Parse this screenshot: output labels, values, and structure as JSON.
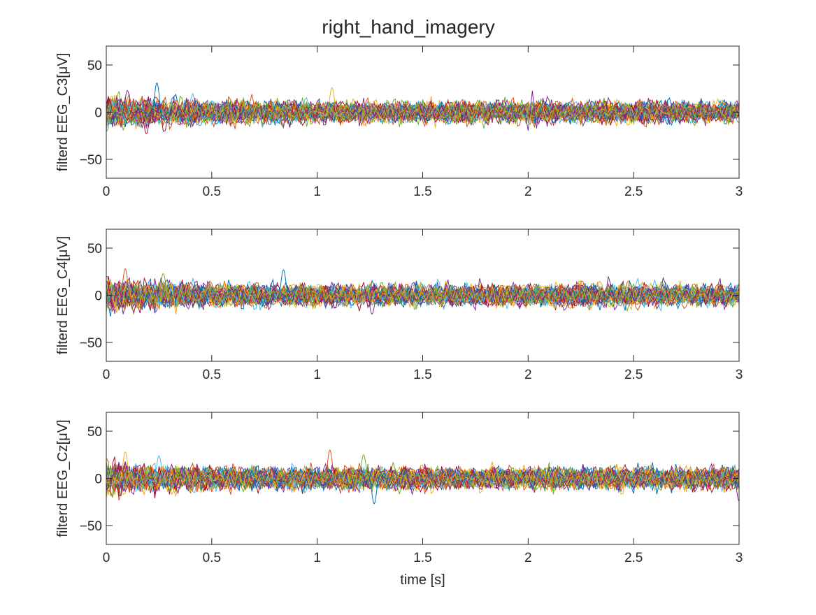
{
  "figure": {
    "title": "right_hand_imagery"
  },
  "chart_data": [
    {
      "type": "line",
      "title": "right_hand_imagery",
      "xlabel": "",
      "ylabel": "filterd EEG_C3[μV]",
      "xlim": [
        0,
        3
      ],
      "ylim": [
        -70,
        70
      ],
      "xticks": [
        0,
        0.5,
        1,
        1.5,
        2,
        2.5,
        3
      ],
      "xtick_labels": [
        "0",
        "0.5",
        "1",
        "1.5",
        "2",
        "2.5",
        "3"
      ],
      "yticks": [
        -50,
        0,
        50
      ],
      "ytick_labels": [
        "−50",
        "0",
        "50"
      ],
      "grid": false,
      "legend": "none",
      "n_traces": 40,
      "typical_amplitude_uV": 6,
      "peak_amplitude_uV": 32,
      "notable_peaks": [
        {
          "t": 0.24,
          "v": 31
        },
        {
          "t": 0.1,
          "v": 23
        },
        {
          "t": 0.19,
          "v": -23
        },
        {
          "t": 1.07,
          "v": 26
        }
      ]
    },
    {
      "type": "line",
      "xlabel": "",
      "ylabel": "filterd EEG_C4[μV]",
      "xlim": [
        0,
        3
      ],
      "ylim": [
        -70,
        70
      ],
      "xticks": [
        0,
        0.5,
        1,
        1.5,
        2,
        2.5,
        3
      ],
      "xtick_labels": [
        "0",
        "0.5",
        "1",
        "1.5",
        "2",
        "2.5",
        "3"
      ],
      "yticks": [
        -50,
        0,
        50
      ],
      "ytick_labels": [
        "−50",
        "0",
        "50"
      ],
      "grid": false,
      "legend": "none",
      "n_traces": 40,
      "typical_amplitude_uV": 6,
      "peak_amplitude_uV": 28,
      "notable_peaks": [
        {
          "t": 0.09,
          "v": 28
        },
        {
          "t": 0.27,
          "v": 23
        },
        {
          "t": 0.84,
          "v": 27
        },
        {
          "t": 1.26,
          "v": -20
        }
      ]
    },
    {
      "type": "line",
      "xlabel": "time [s]",
      "ylabel": "filterd EEG_Cz[μV]",
      "xlim": [
        0,
        3
      ],
      "ylim": [
        -70,
        70
      ],
      "xticks": [
        0,
        0.5,
        1,
        1.5,
        2,
        2.5,
        3
      ],
      "xtick_labels": [
        "0",
        "0.5",
        "1",
        "1.5",
        "2",
        "2.5",
        "3"
      ],
      "yticks": [
        -50,
        0,
        50
      ],
      "ytick_labels": [
        "−50",
        "0",
        "50"
      ],
      "grid": false,
      "legend": "none",
      "n_traces": 40,
      "typical_amplitude_uV": 6,
      "peak_amplitude_uV": 30,
      "notable_peaks": [
        {
          "t": 0.09,
          "v": 28
        },
        {
          "t": 0.25,
          "v": 24
        },
        {
          "t": 1.06,
          "v": 30
        },
        {
          "t": 1.22,
          "v": 25
        },
        {
          "t": 1.27,
          "v": -27
        },
        {
          "t": 3.0,
          "v": -24
        }
      ]
    }
  ],
  "colors": {
    "axis": "#262626",
    "background": "#ffffff",
    "series_palette": [
      "#0072BD",
      "#D95319",
      "#EDB120",
      "#7E2F8E",
      "#77AC30",
      "#4DBEEE",
      "#A2142F"
    ]
  }
}
